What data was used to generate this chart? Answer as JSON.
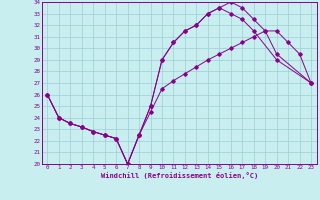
{
  "xlabel": "Windchill (Refroidissement éolien,°C)",
  "bg_color": "#c8eef0",
  "grid_color": "#9ecdd4",
  "line_color": "#8b008b",
  "xlim": [
    -0.5,
    23.5
  ],
  "ylim": [
    20,
    34
  ],
  "xticks": [
    0,
    1,
    2,
    3,
    4,
    5,
    6,
    7,
    8,
    9,
    10,
    11,
    12,
    13,
    14,
    15,
    16,
    17,
    18,
    19,
    20,
    21,
    22,
    23
  ],
  "yticks": [
    20,
    21,
    22,
    23,
    24,
    25,
    26,
    27,
    28,
    29,
    30,
    31,
    32,
    33,
    34
  ],
  "curve1": [
    [
      0,
      26.0
    ],
    [
      1,
      24.0
    ],
    [
      2,
      23.5
    ],
    [
      3,
      23.2
    ],
    [
      4,
      22.8
    ],
    [
      5,
      22.5
    ],
    [
      6,
      22.2
    ],
    [
      7,
      20.0
    ],
    [
      8,
      22.5
    ],
    [
      9,
      25.0
    ],
    [
      10,
      29.0
    ],
    [
      11,
      30.5
    ],
    [
      12,
      31.5
    ],
    [
      13,
      32.0
    ],
    [
      14,
      33.0
    ],
    [
      15,
      33.5
    ],
    [
      16,
      34.0
    ],
    [
      17,
      33.5
    ],
    [
      18,
      32.5
    ],
    [
      19,
      31.5
    ],
    [
      20,
      29.5
    ],
    [
      23,
      27.0
    ]
  ],
  "curve2": [
    [
      0,
      26.0
    ],
    [
      1,
      24.0
    ],
    [
      2,
      23.5
    ],
    [
      3,
      23.2
    ],
    [
      4,
      22.8
    ],
    [
      5,
      22.5
    ],
    [
      6,
      22.2
    ],
    [
      7,
      20.0
    ],
    [
      8,
      22.5
    ],
    [
      9,
      25.0
    ],
    [
      10,
      29.0
    ],
    [
      11,
      30.5
    ],
    [
      12,
      31.5
    ],
    [
      13,
      32.0
    ],
    [
      14,
      33.0
    ],
    [
      15,
      33.5
    ],
    [
      16,
      33.0
    ],
    [
      17,
      32.5
    ],
    [
      18,
      31.5
    ],
    [
      20,
      29.0
    ],
    [
      23,
      27.0
    ]
  ],
  "curve3": [
    [
      0,
      26.0
    ],
    [
      1,
      24.0
    ],
    [
      2,
      23.5
    ],
    [
      3,
      23.2
    ],
    [
      4,
      22.8
    ],
    [
      5,
      22.5
    ],
    [
      6,
      22.2
    ],
    [
      7,
      20.0
    ],
    [
      8,
      22.5
    ],
    [
      9,
      24.5
    ],
    [
      10,
      26.5
    ],
    [
      11,
      27.2
    ],
    [
      12,
      27.8
    ],
    [
      13,
      28.4
    ],
    [
      14,
      29.0
    ],
    [
      15,
      29.5
    ],
    [
      16,
      30.0
    ],
    [
      17,
      30.5
    ],
    [
      18,
      31.0
    ],
    [
      19,
      31.5
    ],
    [
      20,
      31.5
    ],
    [
      21,
      30.5
    ],
    [
      22,
      29.5
    ],
    [
      23,
      27.0
    ]
  ]
}
